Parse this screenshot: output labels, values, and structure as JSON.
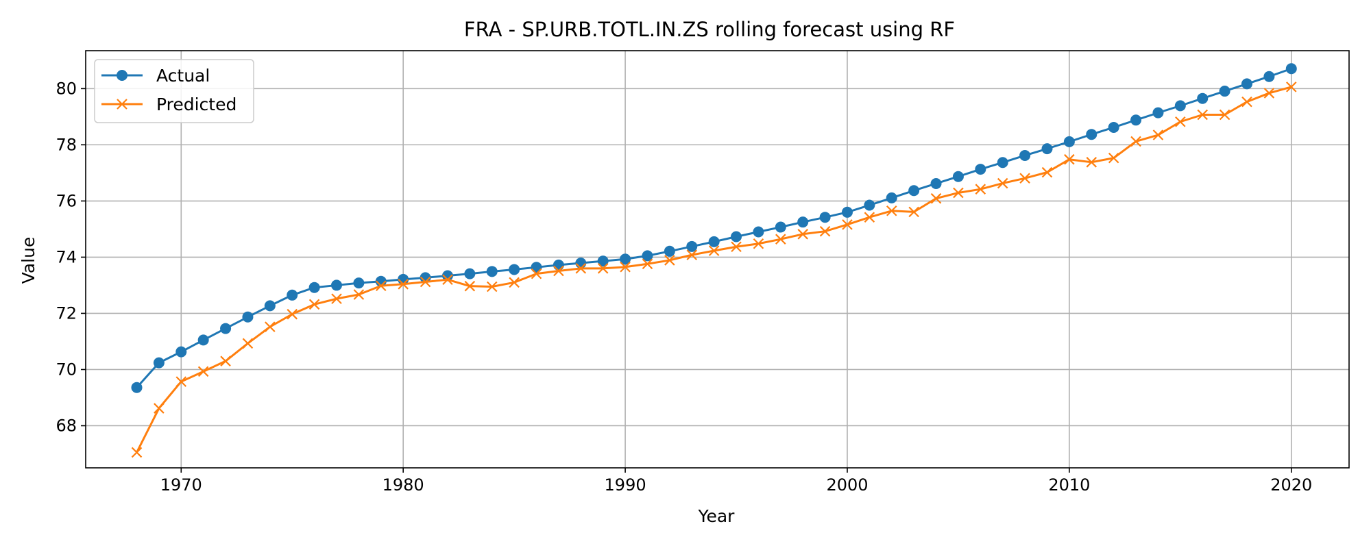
{
  "chart_data": {
    "type": "line",
    "title": "FRA - SP.URB.TOTL.IN.ZS rolling forecast using RF",
    "xlabel": "Year",
    "ylabel": "Value",
    "xlim": [
      1965.7,
      2022.6
    ],
    "ylim": [
      66.5,
      81.35
    ],
    "xticks": [
      1970,
      1980,
      1990,
      2000,
      2010,
      2020
    ],
    "yticks": [
      68,
      70,
      72,
      74,
      76,
      78,
      80
    ],
    "xtick_labels": [
      "1970",
      "1980",
      "1990",
      "2000",
      "2010",
      "2020"
    ],
    "ytick_labels": [
      "68",
      "70",
      "72",
      "74",
      "76",
      "78",
      "80"
    ],
    "grid": true,
    "legend_position": "top-left",
    "x": [
      1968,
      1969,
      1970,
      1971,
      1972,
      1973,
      1974,
      1975,
      1976,
      1977,
      1978,
      1979,
      1980,
      1981,
      1982,
      1983,
      1984,
      1985,
      1986,
      1987,
      1988,
      1989,
      1990,
      1991,
      1992,
      1993,
      1994,
      1995,
      1996,
      1997,
      1998,
      1999,
      2000,
      2001,
      2002,
      2003,
      2004,
      2005,
      2006,
      2007,
      2008,
      2009,
      2010,
      2011,
      2012,
      2013,
      2014,
      2015,
      2016,
      2017,
      2018,
      2019,
      2020
    ],
    "series": [
      {
        "name": "Actual",
        "color": "#1f77b4",
        "marker": "circle",
        "values": [
          69.36,
          70.24,
          70.63,
          71.05,
          71.46,
          71.87,
          72.27,
          72.65,
          72.92,
          73.0,
          73.08,
          73.14,
          73.21,
          73.27,
          73.34,
          73.41,
          73.49,
          73.56,
          73.64,
          73.72,
          73.79,
          73.86,
          73.93,
          74.05,
          74.21,
          74.38,
          74.55,
          74.73,
          74.9,
          75.07,
          75.25,
          75.42,
          75.6,
          75.85,
          76.11,
          76.37,
          76.62,
          76.87,
          77.13,
          77.37,
          77.62,
          77.86,
          78.11,
          78.37,
          78.62,
          78.88,
          79.14,
          79.39,
          79.65,
          79.91,
          80.17,
          80.43,
          80.71
        ]
      },
      {
        "name": "Predicted",
        "color": "#ff7f0e",
        "marker": "x",
        "values": [
          67.05,
          68.62,
          69.57,
          69.93,
          70.3,
          70.93,
          71.52,
          71.97,
          72.32,
          72.52,
          72.67,
          72.98,
          73.04,
          73.12,
          73.2,
          72.97,
          72.95,
          73.1,
          73.41,
          73.51,
          73.6,
          73.6,
          73.65,
          73.76,
          73.89,
          74.08,
          74.23,
          74.37,
          74.48,
          74.64,
          74.82,
          74.92,
          75.16,
          75.42,
          75.65,
          75.61,
          76.09,
          76.29,
          76.42,
          76.63,
          76.81,
          77.02,
          77.48,
          77.38,
          77.53,
          78.12,
          78.35,
          78.82,
          79.07,
          79.07,
          79.53,
          79.84,
          80.06
        ]
      }
    ]
  }
}
